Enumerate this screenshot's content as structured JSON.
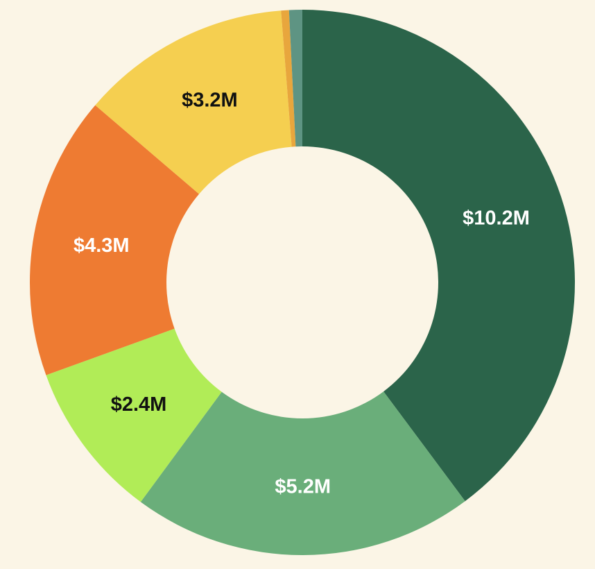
{
  "chart_data": {
    "type": "pie",
    "variant": "donut",
    "title": "",
    "series": [
      {
        "values": [
          10.2,
          5.2,
          2.4,
          4.3,
          3.2,
          0.12,
          0.2
        ],
        "labels": [
          "$10.2M",
          "$5.2M",
          "$2.4M",
          "$4.3M",
          "$3.2M",
          "",
          ""
        ],
        "colors": [
          "#2b644a",
          "#6aae7a",
          "#b1ec57",
          "#ee7b32",
          "#f5cf50",
          "#e8a63d",
          "#5e9483"
        ],
        "label_colors": [
          "#ffffff",
          "#ffffff",
          "#111111",
          "#ffffff",
          "#111111",
          "#111111",
          "#111111"
        ]
      }
    ],
    "start": "top",
    "direction": "clockwise",
    "legend": "none"
  },
  "background": "#fbf5e6"
}
